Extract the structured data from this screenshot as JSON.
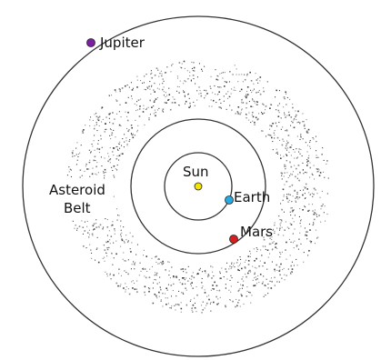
{
  "sun": {
    "label": "Sun",
    "color": "#f5e400"
  },
  "planets": [
    {
      "label": "Earth",
      "color": "#29a9e0"
    },
    {
      "label": "Mars",
      "color": "#d71f1f"
    },
    {
      "label": "Jupiter",
      "color": "#7b1fa2"
    }
  ],
  "asteroid_belt": {
    "label_line1": "Asteroid",
    "label_line2": "Belt"
  }
}
